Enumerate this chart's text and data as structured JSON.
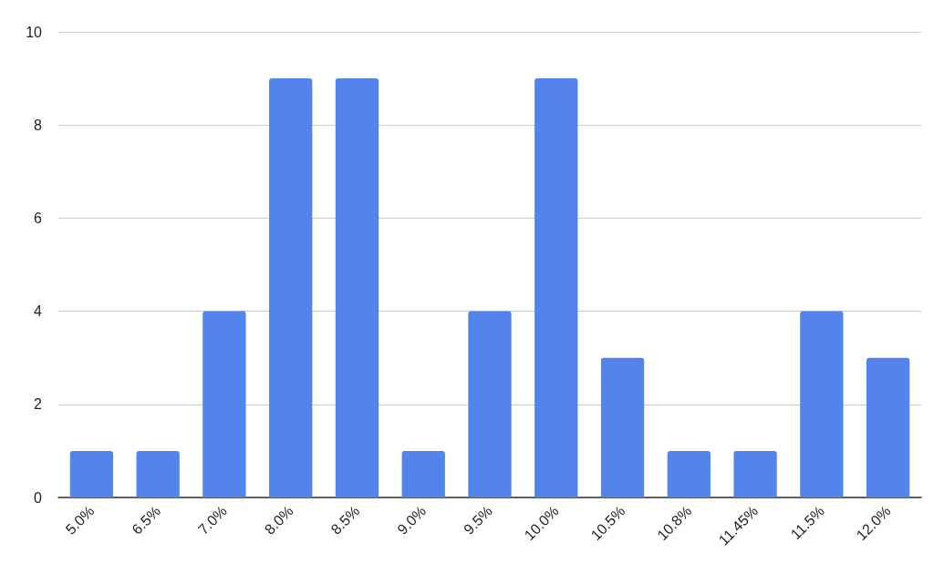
{
  "chart_data": {
    "type": "bar",
    "categories": [
      "5.0%",
      "6.5%",
      "7.0%",
      "8.0%",
      "8.5%",
      "9.0%",
      "9.5%",
      "10.0%",
      "10.5%",
      "10.8%",
      "11.45%",
      "11.5%",
      "12.0%"
    ],
    "values": [
      1,
      1,
      4,
      9,
      9,
      1,
      4,
      9,
      3,
      1,
      1,
      4,
      3
    ],
    "color": "#5284ec",
    "ylim": [
      0,
      10
    ],
    "yticks": [
      0,
      2,
      4,
      6,
      8,
      10
    ],
    "grid": "y"
  }
}
